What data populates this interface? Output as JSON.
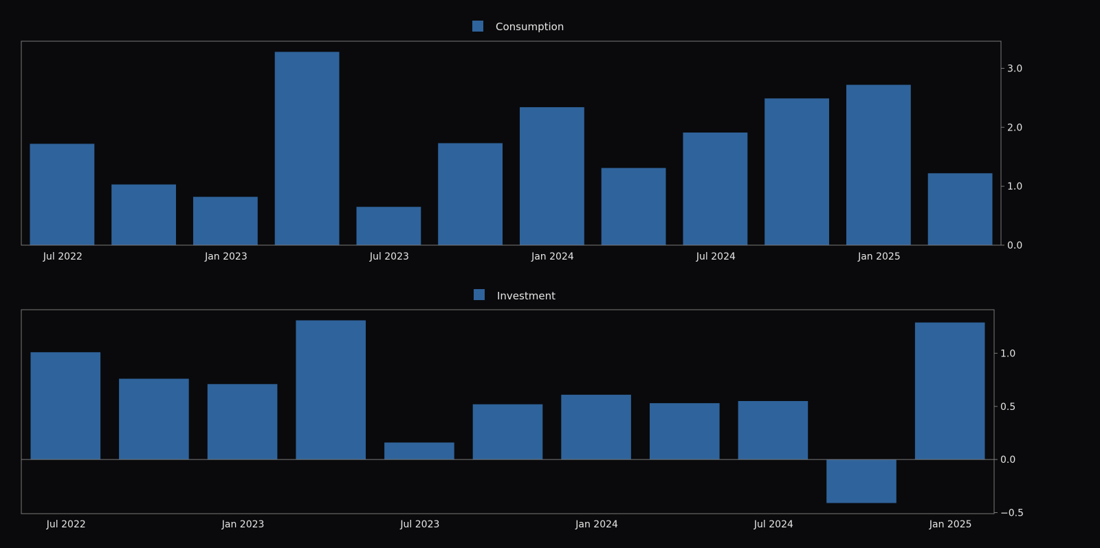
{
  "colors": {
    "bar": "#2f639b",
    "frame": "#7a7a7a",
    "background": "#0a0a0c",
    "text": "#e6e6e6"
  },
  "chart_data": [
    {
      "type": "bar",
      "legend": "Consumption",
      "legend_position": "top-center",
      "series": [
        {
          "name": "Consumption",
          "values": [
            1.72,
            1.03,
            0.82,
            3.28,
            0.65,
            1.73,
            2.34,
            1.31,
            1.91,
            2.49,
            2.72,
            1.22
          ]
        }
      ],
      "categories": [
        "2022-07",
        "2022-10",
        "2023-01",
        "2023-04",
        "2023-07",
        "2023-10",
        "2024-01",
        "2024-04",
        "2024-07",
        "2024-10",
        "2025-01",
        "2025-04"
      ],
      "xtick_labels": [
        "Jul 2022",
        "Jan 2023",
        "Jul 2023",
        "Jan 2024",
        "Jul 2024",
        "Jan 2025"
      ],
      "yticks": [
        "0.0",
        "1.0",
        "2.0",
        "3.0"
      ],
      "ylim": [
        0,
        3.46
      ],
      "y_axis_side": "right",
      "grid": false
    },
    {
      "type": "bar",
      "legend": "Investment",
      "legend_position": "top-center",
      "series": [
        {
          "name": "Investment",
          "values": [
            1.01,
            0.76,
            0.71,
            1.31,
            0.16,
            0.52,
            0.61,
            0.53,
            0.55,
            -0.41,
            1.29
          ]
        }
      ],
      "categories": [
        "2022-07",
        "2022-10",
        "2023-01",
        "2023-04",
        "2023-07",
        "2023-10",
        "2024-01",
        "2024-04",
        "2024-07",
        "2024-10",
        "2025-01"
      ],
      "xtick_labels": [
        "Jul 2022",
        "Jan 2023",
        "Jul 2023",
        "Jan 2024",
        "Jul 2024",
        "Jan 2025"
      ],
      "yticks": [
        "−0.5",
        "0.0",
        "0.5",
        "1.0"
      ],
      "ylim": [
        -0.51,
        1.41
      ],
      "y_axis_side": "right",
      "grid": false,
      "zero_line": true
    }
  ]
}
